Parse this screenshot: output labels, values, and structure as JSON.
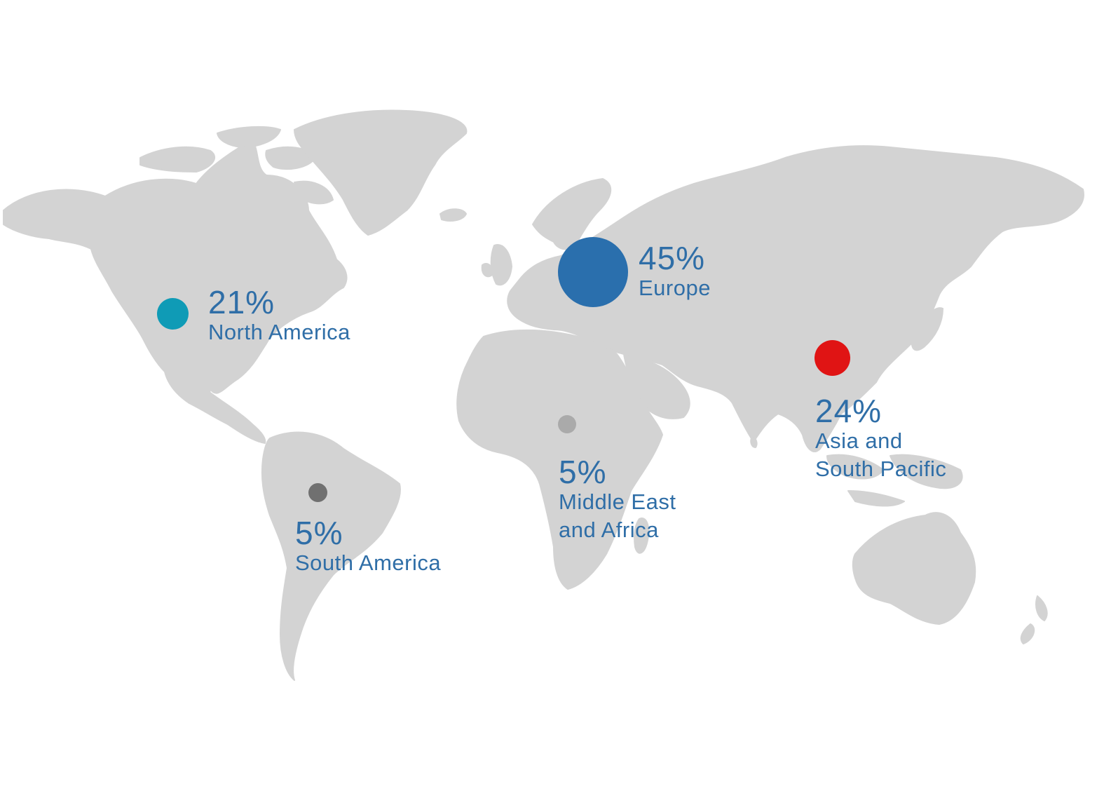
{
  "regions": [
    {
      "key": "north_america",
      "percent": "21%",
      "name": "North America",
      "color": "#0f9bb6"
    },
    {
      "key": "europe",
      "percent": "45%",
      "name": "Europe",
      "color": "#2a6fad"
    },
    {
      "key": "asia",
      "percent": "24%",
      "name": "Asia and\nSouth Pacific",
      "color": "#e01414"
    },
    {
      "key": "mea",
      "percent": "5%",
      "name": "Middle East\nand Africa",
      "color": "#aaaaaa"
    },
    {
      "key": "south_america",
      "percent": "5%",
      "name": "South America",
      "color": "#707070"
    }
  ],
  "colors": {
    "land": "#d3d3d3",
    "label_text": "#2f6ea7",
    "background": "#ffffff"
  }
}
